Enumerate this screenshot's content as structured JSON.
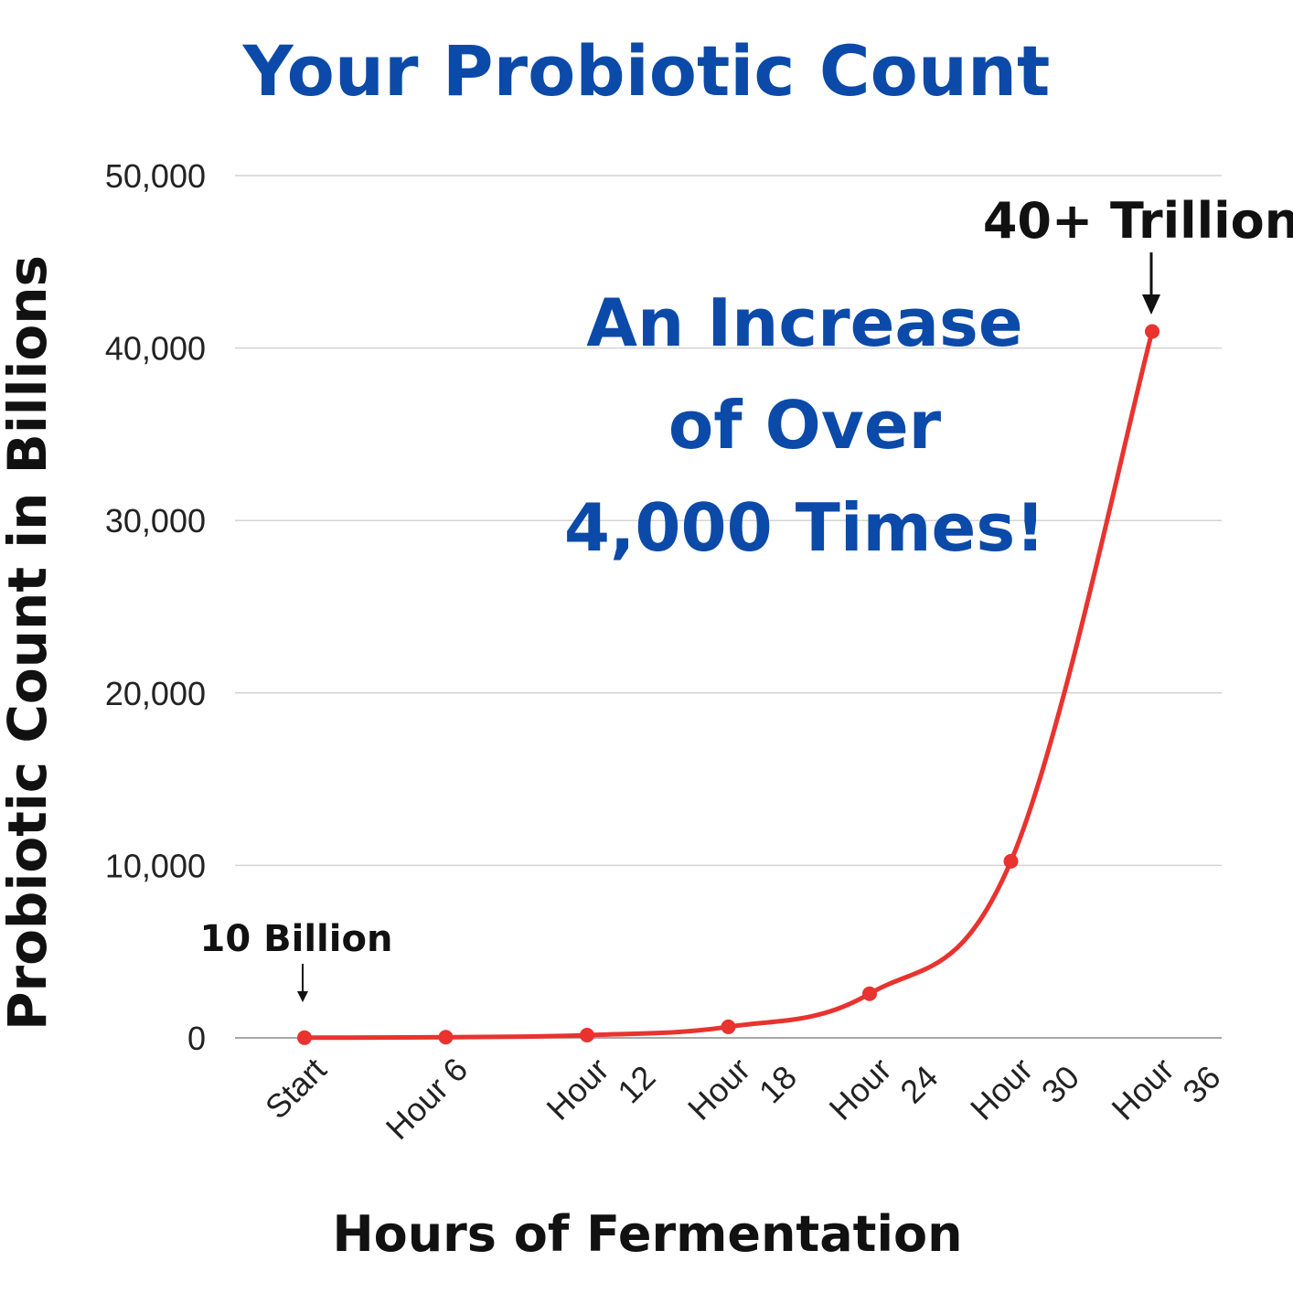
{
  "chart_data": {
    "type": "line",
    "title": "Your Probiotic Count",
    "xlabel": "Hours of Fermentation",
    "ylabel": "Probiotic Count in Billions",
    "categories": [
      [
        "Start"
      ],
      [
        "Hour 6"
      ],
      [
        "Hour",
        "12"
      ],
      [
        "Hour",
        "18"
      ],
      [
        "Hour",
        "24"
      ],
      [
        "Hour",
        "30"
      ],
      [
        "Hour",
        "36"
      ]
    ],
    "values": [
      10,
      40,
      160,
      640,
      2560,
      10240,
      40960
    ],
    "ylim": [
      0,
      50000
    ],
    "yticks": [
      "0",
      "10,000",
      "20,000",
      "30,000",
      "40,000",
      "50,000"
    ],
    "grid": true,
    "line_color": "#e8332f",
    "accent_color": "#0b4aa8",
    "annotations": {
      "start_label": "10 Billion",
      "end_label": "40+ Trillion",
      "center_lines": [
        "An Increase",
        "of Over",
        "4,000 Times!"
      ]
    }
  }
}
